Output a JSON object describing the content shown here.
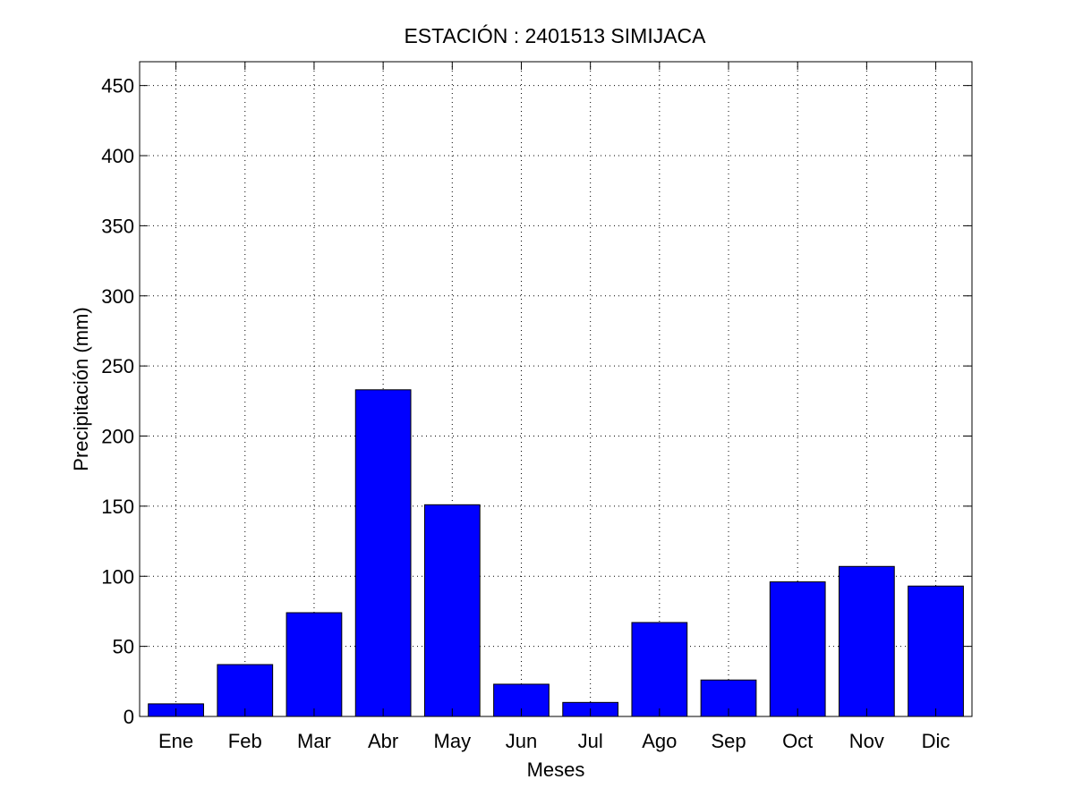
{
  "chart_data": {
    "type": "bar",
    "title": "ESTACIÓN :  2401513  SIMIJACA",
    "xlabel": "Meses",
    "ylabel": "Precipitación (mm)",
    "categories": [
      "Ene",
      "Feb",
      "Mar",
      "Abr",
      "May",
      "Jun",
      "Jul",
      "Ago",
      "Sep",
      "Oct",
      "Nov",
      "Dic"
    ],
    "values": [
      9,
      37,
      74,
      233,
      151,
      23,
      10,
      67,
      26,
      96,
      107,
      93
    ],
    "ylim": [
      0,
      467
    ],
    "yticks": [
      0,
      50,
      100,
      150,
      200,
      250,
      300,
      350,
      400,
      450
    ],
    "grid": true,
    "bar_color": "#0000ff",
    "edge_color": "#000000"
  }
}
